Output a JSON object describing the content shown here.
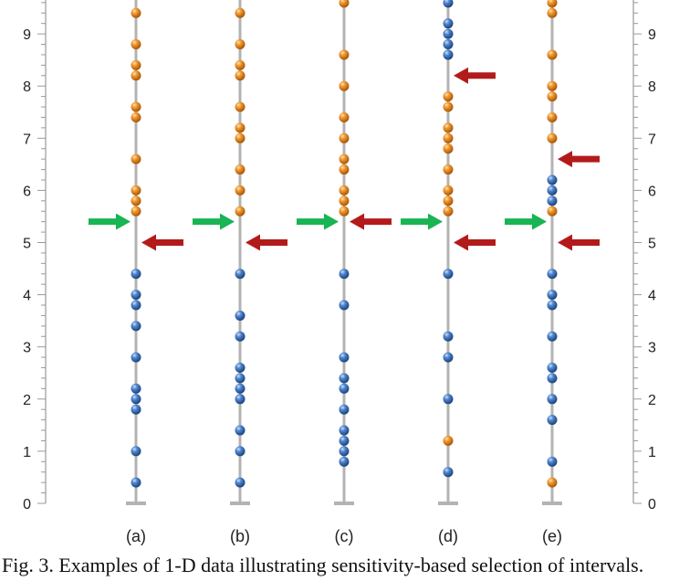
{
  "caption": "Fig. 3.   Examples of 1-D data illustrating sensitivity-based selection of intervals.",
  "axis": {
    "ticks": [
      "0",
      "1",
      "2",
      "3",
      "4",
      "5",
      "6",
      "7",
      "8",
      "9"
    ],
    "ymin": 0,
    "ymax": 9.75
  },
  "colors": {
    "blue": "#2e62a8",
    "orange": "#e07b14",
    "green_arrow": "#19b454",
    "red_arrow": "#b31b1b",
    "line": "#b3b3b3",
    "axis": "#999999"
  },
  "panels": [
    {
      "label": "(a)",
      "blue": [
        0.4,
        1.0,
        1.8,
        2.0,
        2.2,
        2.8,
        3.4,
        3.8,
        4.0,
        4.4
      ],
      "orange": [
        5.6,
        5.8,
        6.0,
        6.6,
        7.4,
        7.6,
        8.2,
        8.4,
        8.8,
        9.4
      ],
      "green_arrows": [
        5.4
      ],
      "red_arrows": [
        5.0
      ]
    },
    {
      "label": "(b)",
      "blue": [
        0.4,
        1.0,
        1.4,
        2.0,
        2.2,
        2.4,
        2.6,
        3.2,
        3.6,
        4.4
      ],
      "orange": [
        5.6,
        6.0,
        6.4,
        7.0,
        7.2,
        7.6,
        8.2,
        8.4,
        8.8,
        9.4
      ],
      "green_arrows": [
        5.4
      ],
      "red_arrows": [
        5.0
      ]
    },
    {
      "label": "(c)",
      "blue": [
        0.8,
        1.0,
        1.2,
        1.4,
        1.8,
        2.2,
        2.4,
        2.8,
        3.8,
        4.4
      ],
      "orange": [
        5.6,
        5.8,
        6.0,
        6.4,
        6.6,
        7.0,
        7.4,
        8.0,
        8.6,
        9.6
      ],
      "green_arrows": [
        5.4
      ],
      "red_arrows": [
        5.4
      ]
    },
    {
      "label": "(d)",
      "blue": [
        0.6,
        2.0,
        2.8,
        3.2,
        4.4,
        8.6,
        8.8,
        9.0,
        9.2,
        9.6
      ],
      "orange": [
        1.2,
        5.6,
        5.8,
        6.0,
        6.4,
        6.8,
        7.0,
        7.2,
        7.6,
        7.8
      ],
      "green_arrows": [
        5.4
      ],
      "red_arrows": [
        5.0,
        8.2
      ]
    },
    {
      "label": "(e)",
      "blue": [
        0.8,
        1.6,
        2.0,
        2.4,
        2.6,
        3.2,
        3.8,
        4.0,
        4.4,
        5.8,
        6.0,
        6.2
      ],
      "orange": [
        0.4,
        5.6,
        7.0,
        7.4,
        7.8,
        8.0,
        8.6,
        9.4,
        9.6
      ],
      "green_arrows": [
        5.4
      ],
      "red_arrows": [
        5.0,
        6.6
      ]
    }
  ]
}
